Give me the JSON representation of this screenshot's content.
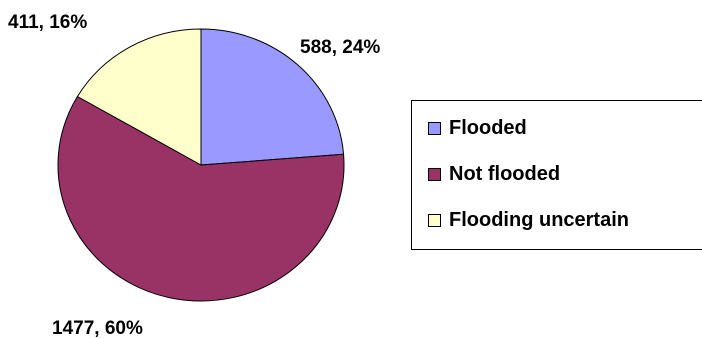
{
  "chart_data": {
    "type": "pie",
    "title": "",
    "categories": [
      "Flooded",
      "Not flooded",
      "Flooding uncertain"
    ],
    "values": [
      588,
      1477,
      411
    ],
    "percentages": [
      24,
      60,
      16
    ],
    "data_labels": [
      "588, 24%",
      "1477, 60%",
      "411, 16%"
    ],
    "colors": [
      "#9999FF",
      "#993366",
      "#FFFFCC"
    ],
    "legend_placement": "right"
  }
}
